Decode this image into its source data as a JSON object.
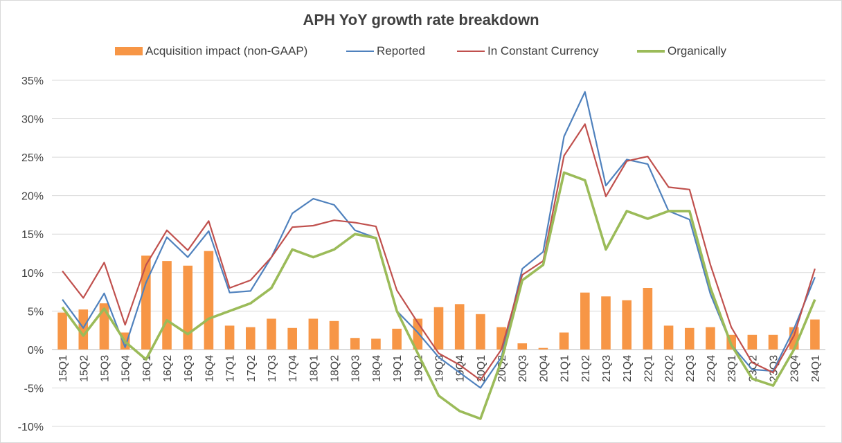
{
  "chart_data": {
    "type": "bar",
    "title": "APH YoY growth rate breakdown",
    "xlabel": "",
    "ylabel": "",
    "ylim": [
      -0.1,
      0.35
    ],
    "y_ticks": [
      "35%",
      "30%",
      "25%",
      "20%",
      "15%",
      "10%",
      "5%",
      "0%",
      "-5%",
      "-10%"
    ],
    "y_tick_values": [
      0.35,
      0.3,
      0.25,
      0.2,
      0.15,
      0.1,
      0.05,
      0.0,
      -0.05,
      -0.1
    ],
    "grid": true,
    "legend_position": "top",
    "categories": [
      "15Q1",
      "15Q2",
      "15Q3",
      "15Q4",
      "16Q1",
      "16Q2",
      "16Q3",
      "16Q4",
      "17Q1",
      "17Q2",
      "17Q3",
      "17Q4",
      "18Q1",
      "18Q2",
      "18Q3",
      "18Q4",
      "19Q1",
      "19Q2",
      "19Q3",
      "19Q4",
      "20Q1",
      "20Q2",
      "20Q3",
      "20Q4",
      "21Q1",
      "21Q2",
      "21Q3",
      "21Q4",
      "22Q1",
      "22Q2",
      "22Q3",
      "22Q4",
      "23Q1",
      "23Q2",
      "23Q3",
      "23Q4",
      "24Q1"
    ],
    "series": [
      {
        "name": "Acquisition impact (non-GAAP)",
        "kind": "bar",
        "color": "#F79646",
        "values": [
          0.048,
          0.052,
          0.06,
          0.022,
          0.122,
          0.115,
          0.109,
          0.128,
          0.031,
          0.029,
          0.04,
          0.028,
          0.04,
          0.037,
          0.015,
          0.014,
          0.027,
          0.04,
          0.055,
          0.059,
          0.046,
          0.029,
          0.008,
          0.002,
          0.022,
          0.074,
          0.069,
          0.064,
          0.08,
          0.031,
          0.028,
          0.029,
          0.019,
          0.019,
          0.019,
          0.029,
          0.039
        ]
      },
      {
        "name": "Reported",
        "kind": "line",
        "color": "#4F81BD",
        "values": [
          0.065,
          0.028,
          0.073,
          0.003,
          0.087,
          0.146,
          0.12,
          0.154,
          0.074,
          0.076,
          0.12,
          0.177,
          0.196,
          0.188,
          0.155,
          0.145,
          0.05,
          0.022,
          -0.01,
          -0.03,
          -0.05,
          -0.01,
          0.105,
          0.127,
          0.277,
          0.335,
          0.213,
          0.247,
          0.241,
          0.18,
          0.169,
          0.072,
          0.006,
          -0.026,
          -0.028,
          0.027,
          0.094
        ]
      },
      {
        "name": "In Constant Currency",
        "kind": "line",
        "color": "#C0504D",
        "values": [
          0.102,
          0.067,
          0.113,
          0.032,
          0.11,
          0.155,
          0.129,
          0.167,
          0.08,
          0.09,
          0.12,
          0.159,
          0.161,
          0.168,
          0.165,
          0.16,
          0.077,
          0.035,
          -0.005,
          -0.02,
          -0.04,
          0.0,
          0.097,
          0.115,
          0.252,
          0.293,
          0.199,
          0.245,
          0.251,
          0.211,
          0.208,
          0.11,
          0.029,
          -0.017,
          -0.03,
          0.018,
          0.105
        ]
      },
      {
        "name": "Organically",
        "kind": "line",
        "color": "#9BBB59",
        "values": [
          0.055,
          0.018,
          0.053,
          0.01,
          -0.013,
          0.038,
          0.02,
          0.04,
          0.05,
          0.06,
          0.08,
          0.13,
          0.12,
          0.13,
          0.15,
          0.145,
          0.05,
          -0.005,
          -0.06,
          -0.08,
          -0.09,
          -0.015,
          0.09,
          0.11,
          0.23,
          0.22,
          0.13,
          0.18,
          0.17,
          0.18,
          0.18,
          0.08,
          0.006,
          -0.038,
          -0.047,
          0.0,
          0.065
        ]
      }
    ]
  }
}
